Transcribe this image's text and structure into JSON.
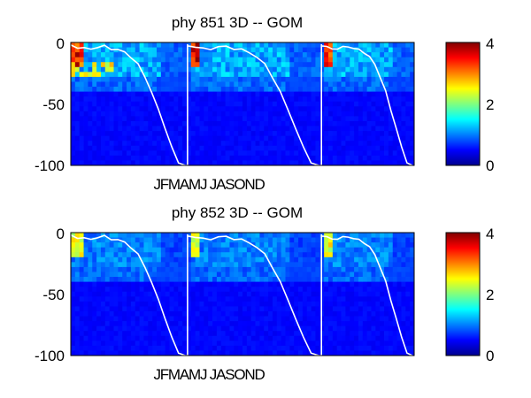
{
  "chart_data": [
    {
      "type": "heatmap",
      "title": "phy  851 3D   -- GOM",
      "xlabel": "JFMAMJ JASOND",
      "ylabel": "",
      "ylim": [
        -100,
        0
      ],
      "yticks": [
        "0",
        "-50",
        "-100"
      ],
      "colorbar": {
        "range": [
          0,
          4
        ],
        "ticks": [
          "4",
          "2",
          "0"
        ],
        "colormap": "jet"
      },
      "year_boundaries_fraction": [
        0.34,
        0.73
      ],
      "mixed_layer_depth": [
        -2,
        -4,
        -5,
        -5,
        -4,
        -3,
        -5,
        -6,
        -8,
        -12,
        -18,
        -28,
        -40,
        -55,
        -70,
        -85,
        -98,
        -100,
        -2,
        -4,
        -5,
        -5,
        -4,
        -3,
        -5,
        -6,
        -8,
        -12,
        -18,
        -28,
        -40,
        -55,
        -70,
        -85,
        -98,
        -100,
        -2,
        -4,
        -5,
        -5,
        -4,
        -3,
        -5,
        -6,
        -8,
        -12,
        -18,
        -28,
        -40,
        -55,
        -70,
        -85,
        -98,
        -100
      ],
      "surface_layer_mean": 0.9,
      "deep_layer_mean": 0.05,
      "max_bloom": 4
    },
    {
      "type": "heatmap",
      "title": "phy  852 3D   -- GOM",
      "xlabel": "JFMAMJ JASOND",
      "ylabel": "",
      "ylim": [
        -100,
        0
      ],
      "yticks": [
        "0",
        "-50",
        "-100"
      ],
      "colorbar": {
        "range": [
          0,
          4
        ],
        "ticks": [
          "4",
          "2",
          "0"
        ],
        "colormap": "jet"
      },
      "year_boundaries_fraction": [
        0.34,
        0.73
      ],
      "mixed_layer_depth": [
        -2,
        -4,
        -5,
        -5,
        -4,
        -3,
        -5,
        -6,
        -8,
        -12,
        -18,
        -28,
        -40,
        -55,
        -70,
        -85,
        -98,
        -100,
        -2,
        -4,
        -5,
        -5,
        -4,
        -3,
        -5,
        -6,
        -8,
        -12,
        -18,
        -28,
        -40,
        -55,
        -70,
        -85,
        -98,
        -100,
        -2,
        -4,
        -5,
        -5,
        -4,
        -3,
        -5,
        -6,
        -8,
        -12,
        -18,
        -28,
        -40,
        -55,
        -70,
        -85,
        -98,
        -100
      ],
      "surface_layer_mean": 0.7,
      "deep_layer_mean": 0.05,
      "max_bloom": 2.6
    }
  ]
}
